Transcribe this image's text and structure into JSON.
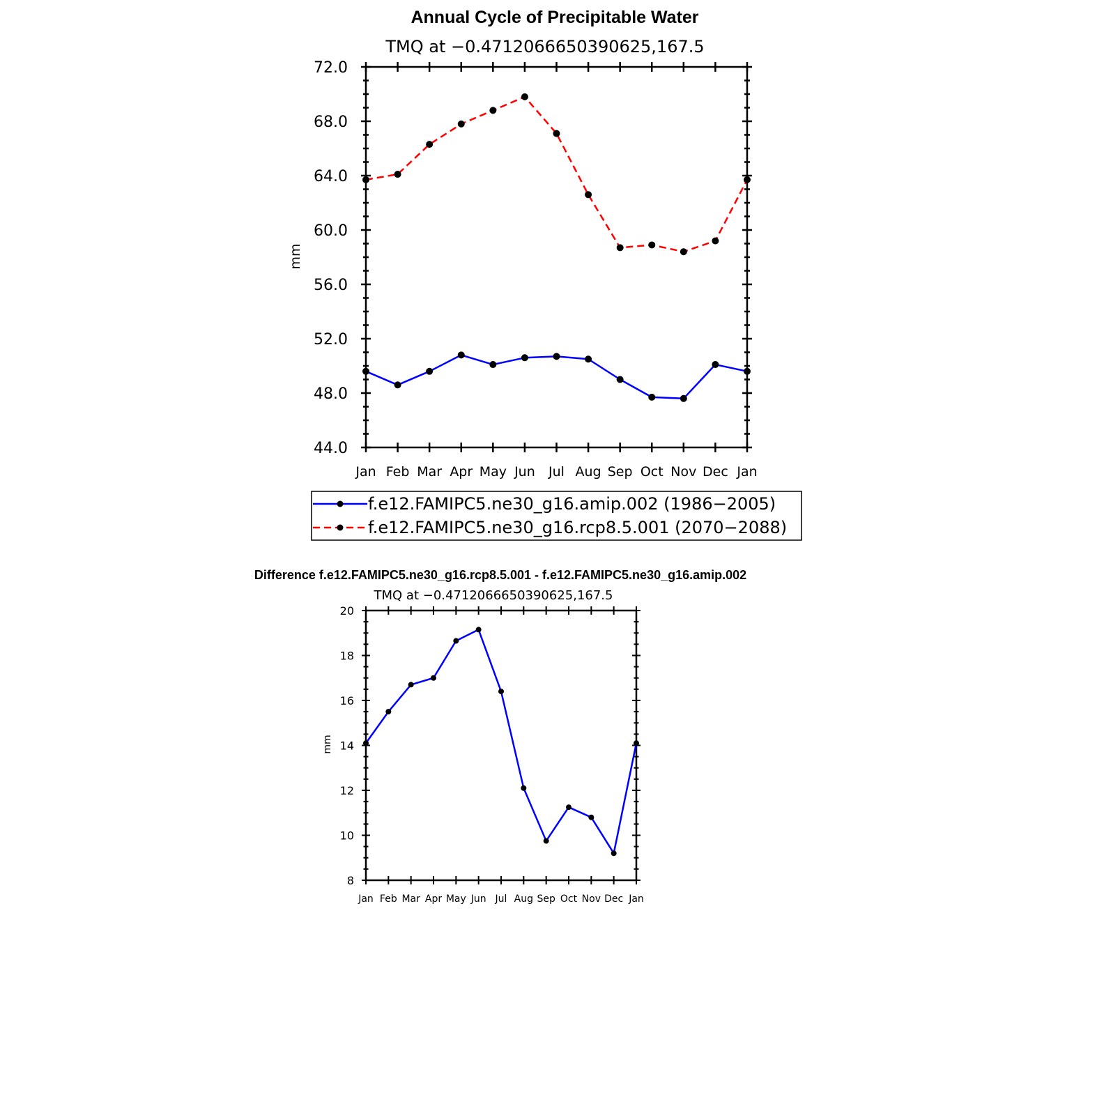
{
  "chart_data": [
    {
      "type": "line",
      "title": "Annual Cycle of Precipitable Water",
      "subtitle": "TMQ at −0.4712066650390625,167.5",
      "ylabel": "mm",
      "ylim": [
        44,
        72
      ],
      "yticks": [
        44,
        48,
        52,
        56,
        60,
        64,
        68,
        72
      ],
      "ytick_labels": [
        "44.0",
        "48.0",
        "52.0",
        "56.0",
        "60.0",
        "64.0",
        "68.0",
        "72.0"
      ],
      "categories": [
        "Jan",
        "Feb",
        "Mar",
        "Apr",
        "May",
        "Jun",
        "Jul",
        "Aug",
        "Sep",
        "Oct",
        "Nov",
        "Dec",
        "Jan"
      ],
      "grid": false,
      "legend_position": "bottom",
      "series": [
        {
          "name": "f.e12.FAMIPC5.ne30_g16.amip.002 (1986−2005)",
          "color": "#0000ff",
          "dash": "solid",
          "values": [
            49.6,
            48.6,
            49.6,
            50.8,
            50.1,
            50.6,
            50.7,
            50.5,
            49.0,
            47.7,
            47.6,
            50.1,
            49.6
          ]
        },
        {
          "name": "f.e12.FAMIPC5.ne30_g16.rcp8.5.001 (2070−2088)",
          "color": "#ff0000",
          "dash": "dashed",
          "values": [
            63.7,
            64.1,
            66.3,
            67.8,
            68.8,
            69.8,
            67.1,
            62.6,
            58.7,
            58.9,
            58.4,
            59.2,
            63.7
          ]
        }
      ]
    },
    {
      "type": "line",
      "title": "Difference f.e12.FAMIPC5.ne30_g16.rcp8.5.001 - f.e12.FAMIPC5.ne30_g16.amip.002",
      "subtitle": "TMQ at −0.4712066650390625,167.5",
      "ylabel": "mm",
      "ylim": [
        8,
        20
      ],
      "yticks": [
        8,
        10,
        12,
        14,
        16,
        18,
        20
      ],
      "ytick_labels": [
        "8",
        "10",
        "12",
        "14",
        "16",
        "18",
        "20"
      ],
      "categories": [
        "Jan",
        "Feb",
        "Mar",
        "Apr",
        "May",
        "Jun",
        "Jul",
        "Aug",
        "Sep",
        "Oct",
        "Nov",
        "Dec",
        "Jan"
      ],
      "grid": false,
      "series": [
        {
          "color": "#0000ff",
          "dash": "solid",
          "values": [
            14.1,
            15.5,
            16.7,
            17.0,
            18.65,
            19.15,
            16.4,
            12.1,
            9.75,
            11.25,
            10.8,
            9.2,
            14.1
          ]
        }
      ]
    }
  ]
}
